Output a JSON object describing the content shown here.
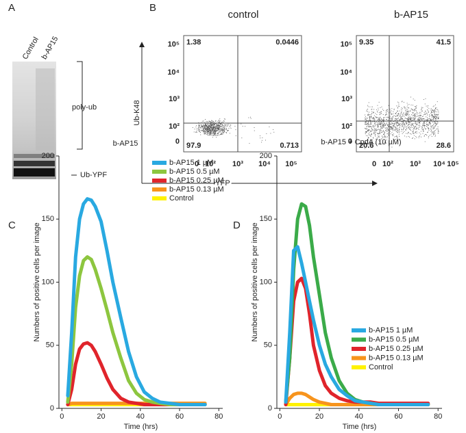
{
  "panels": {
    "A": {
      "label": "A",
      "lanes": [
        "Control",
        "b-AP15"
      ],
      "bands": [
        "poly-ub",
        "Ub-YPF"
      ]
    },
    "B": {
      "label": "B",
      "x_label": "YFP",
      "y_label": "Ub-K48",
      "y_tick_labels": [
        "10⁵",
        "10⁴",
        "10³",
        "10²",
        "0"
      ],
      "x_tick_labels": [
        "0",
        "10²",
        "10³",
        "10⁴",
        "10⁵"
      ],
      "plots": [
        {
          "title": "control",
          "quadrants": [
            1.38,
            0.0446,
            97.9,
            0.713
          ]
        },
        {
          "title": "b-AP15",
          "quadrants": [
            9.35,
            41.5,
            20.6,
            28.6
          ]
        }
      ]
    }
  },
  "chart_data": [
    {
      "type": "line",
      "panel": "C",
      "title": "b-AP15",
      "x_label": "Time (hrs)",
      "y_label": "Numbers of positive cells per image",
      "xlim": [
        -1.5,
        82
      ],
      "xticks": [
        0,
        20,
        40,
        60,
        80
      ],
      "ylim": [
        0,
        200
      ],
      "yticks": [
        0,
        50,
        100,
        150,
        200
      ],
      "x": [
        3,
        5,
        7,
        9,
        11,
        13,
        15,
        17,
        20,
        23,
        26,
        30,
        34,
        38,
        42,
        46,
        50,
        55,
        60,
        65,
        70,
        73
      ],
      "series": [
        {
          "name": "b-AP15 1 µM",
          "color": "#29a9e1",
          "values": [
            10,
            60,
            120,
            150,
            162,
            166,
            165,
            160,
            148,
            125,
            100,
            72,
            45,
            25,
            13,
            8,
            5,
            4,
            3,
            3,
            3,
            3
          ]
        },
        {
          "name": "b-AP15 0.5 µM",
          "color": "#8dc63f",
          "values": [
            5,
            35,
            80,
            105,
            117,
            120,
            118,
            110,
            95,
            78,
            60,
            40,
            22,
            12,
            7,
            5,
            4,
            3,
            3,
            3,
            3,
            3
          ]
        },
        {
          "name": "b-AP15 0.25 µM",
          "color": "#e0242b",
          "values": [
            3,
            15,
            35,
            47,
            51,
            52,
            50,
            45,
            35,
            24,
            15,
            8,
            5,
            4,
            3,
            3,
            3,
            3,
            3,
            3,
            3,
            3
          ]
        },
        {
          "name": "b-AP15 0.13 µM",
          "color": "#f7941d",
          "values": [
            3,
            4,
            4,
            4,
            4,
            4,
            4,
            4,
            4,
            4,
            4,
            4,
            4,
            4,
            4,
            4,
            4,
            4,
            4,
            4,
            4,
            4
          ]
        },
        {
          "name": "Control",
          "color": "#fff200",
          "values": [
            3,
            3,
            3,
            3,
            3,
            3,
            3,
            3,
            3,
            3,
            3,
            3,
            3,
            3,
            3,
            3,
            3,
            3,
            3,
            3,
            3,
            3
          ]
        }
      ]
    },
    {
      "type": "line",
      "panel": "D",
      "title": "b-AP15 + CpdA (10 µM)",
      "x_label": "Time (hrs)",
      "y_label": "Numbers of positive cells per image",
      "xlim": [
        -1.5,
        82
      ],
      "xticks": [
        0,
        20,
        40,
        60,
        80
      ],
      "ylim": [
        0,
        200
      ],
      "yticks": [
        0,
        50,
        100,
        150,
        200
      ],
      "x": [
        3,
        5,
        7,
        9,
        11,
        13,
        15,
        17,
        20,
        23,
        26,
        30,
        34,
        38,
        42,
        46,
        50,
        55,
        60,
        65,
        70,
        75
      ],
      "series": [
        {
          "name": "b-AP15 1 µM",
          "color": "#29a9e1",
          "values": [
            5,
            60,
            125,
            128,
            115,
            100,
            85,
            70,
            50,
            35,
            25,
            15,
            10,
            6,
            5,
            4,
            3,
            3,
            3,
            3,
            3,
            3
          ]
        },
        {
          "name": "b-AP15 0.5 µM",
          "color": "#3bab49",
          "values": [
            5,
            40,
            110,
            150,
            162,
            160,
            145,
            120,
            90,
            60,
            40,
            22,
            12,
            7,
            5,
            4,
            3,
            3,
            3,
            3,
            3,
            3
          ]
        },
        {
          "name": "b-AP15 0.25 µM",
          "color": "#e0242b",
          "values": [
            3,
            40,
            85,
            100,
            103,
            95,
            75,
            50,
            30,
            18,
            12,
            8,
            6,
            5,
            5,
            5,
            4,
            4,
            4,
            4,
            4,
            4
          ]
        },
        {
          "name": "b-AP15 0.13 µM",
          "color": "#f7941d",
          "values": [
            3,
            8,
            11,
            12,
            12,
            11,
            9,
            7,
            5,
            4,
            3,
            3,
            3,
            3,
            3,
            3,
            3,
            3,
            3,
            3,
            3,
            3
          ]
        },
        {
          "name": "Control",
          "color": "#fff200",
          "values": [
            3,
            3,
            3,
            3,
            3,
            3,
            3,
            3,
            3,
            3,
            3,
            3,
            3,
            3,
            3,
            3,
            3,
            3,
            3,
            3,
            3,
            3
          ]
        }
      ]
    }
  ]
}
